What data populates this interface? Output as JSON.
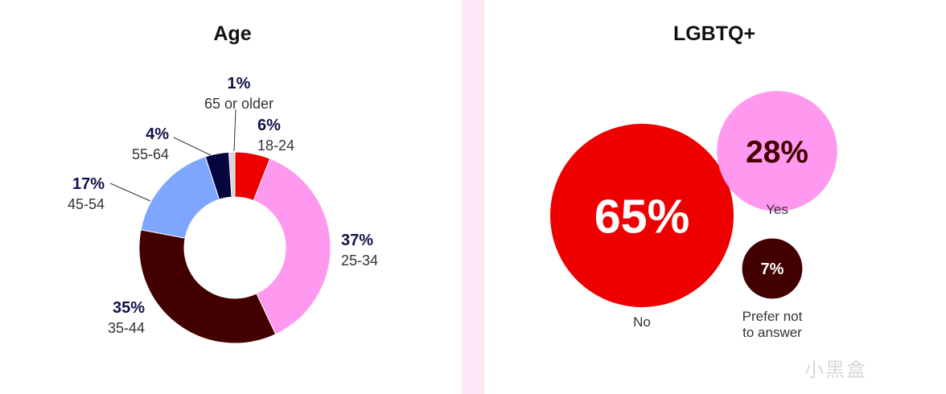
{
  "chart_data": [
    {
      "type": "pie",
      "title": "Age",
      "donut": true,
      "categories": [
        "18-24",
        "25-34",
        "35-44",
        "45-54",
        "55-64",
        "65 or older"
      ],
      "values": [
        6,
        37,
        35,
        17,
        4,
        1
      ],
      "labels": [
        "6%",
        "37%",
        "35%",
        "17%",
        "4%",
        "1%"
      ],
      "colors": [
        "#ee0000",
        "#ff99f0",
        "#420000",
        "#7ea6ff",
        "#06053f",
        "#d6d6d6"
      ]
    },
    {
      "type": "bubble",
      "title": "LGBTQ+",
      "categories": [
        "No",
        "Yes",
        "Prefer not to answer"
      ],
      "category_lines": [
        [
          "No"
        ],
        [
          "Yes"
        ],
        [
          "Prefer not",
          "to answer"
        ]
      ],
      "values": [
        65,
        28,
        7
      ],
      "labels": [
        "65%",
        "28%",
        "7%"
      ],
      "colors": [
        "#ee0000",
        "#ff99f0",
        "#420000"
      ],
      "label_colors": [
        "#ffffff",
        "#420000",
        "#ffffff"
      ]
    }
  ],
  "watermark": "小黑盒"
}
